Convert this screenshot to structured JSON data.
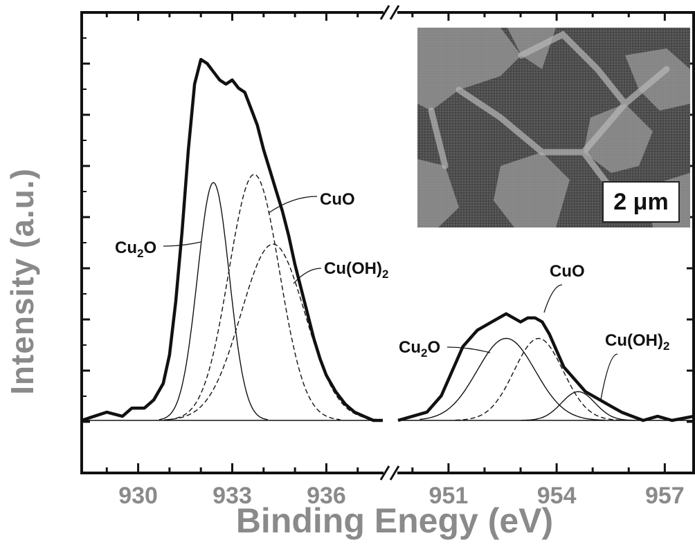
{
  "chart_data": {
    "type": "line",
    "title": "",
    "xlabel": "Binding Enegy (eV)",
    "ylabel": "Intensity (a.u.)",
    "x_tick_labels": [
      "930",
      "933",
      "936",
      "951",
      "954",
      "957"
    ],
    "x_ranges": [
      [
        928.2,
        937.8
      ],
      [
        949.6,
        957.8
      ]
    ],
    "axis_break": true,
    "ylim": [
      -0.12,
      1.0
    ],
    "grid": false,
    "legend": "none",
    "series": [
      {
        "name": "",
        "style": "thick",
        "segment": 0,
        "x": [
          928.2,
          929.0,
          929.5,
          929.8,
          930.2,
          930.5,
          930.8,
          931.0,
          931.2,
          931.4,
          931.6,
          931.8,
          932.0,
          932.2,
          932.4,
          932.6,
          932.8,
          933.0,
          933.2,
          933.4,
          933.6,
          933.8,
          934.0,
          934.2,
          934.4,
          934.6,
          934.8,
          935.0,
          935.2,
          935.4,
          935.6,
          935.8,
          936.0,
          936.3,
          936.6,
          936.9,
          937.2,
          937.5,
          937.8
        ],
        "y": [
          0.0,
          0.02,
          0.01,
          0.03,
          0.03,
          0.05,
          0.09,
          0.16,
          0.29,
          0.46,
          0.66,
          0.82,
          0.88,
          0.87,
          0.85,
          0.83,
          0.82,
          0.83,
          0.81,
          0.8,
          0.76,
          0.72,
          0.66,
          0.61,
          0.56,
          0.51,
          0.45,
          0.38,
          0.32,
          0.26,
          0.2,
          0.15,
          0.11,
          0.07,
          0.04,
          0.02,
          0.01,
          0.0,
          0.0
        ]
      },
      {
        "name": "Cu2O",
        "style": "solid",
        "segment": 0,
        "center": 932.4,
        "height": 0.58,
        "fwhm": 1.2
      },
      {
        "name": "CuO",
        "style": "dashed",
        "segment": 0,
        "center": 933.7,
        "height": 0.6,
        "fwhm": 1.9
      },
      {
        "name": "Cu(OH)2",
        "style": "dashed",
        "segment": 0,
        "center": 934.3,
        "height": 0.43,
        "fwhm": 2.4
      },
      {
        "name": "",
        "style": "thick",
        "segment": 1,
        "x": [
          949.6,
          950.0,
          950.4,
          950.8,
          951.0,
          951.2,
          951.4,
          951.6,
          951.8,
          952.0,
          952.2,
          952.4,
          952.6,
          952.8,
          953.0,
          953.2,
          953.4,
          953.6,
          953.8,
          954.0,
          954.2,
          954.4,
          954.6,
          954.8,
          955.0,
          955.2,
          955.4,
          955.6,
          955.8,
          956.1,
          956.4,
          956.8,
          957.2,
          957.8
        ],
        "y": [
          0.0,
          0.01,
          0.02,
          0.06,
          0.1,
          0.14,
          0.18,
          0.2,
          0.22,
          0.23,
          0.24,
          0.25,
          0.26,
          0.25,
          0.24,
          0.25,
          0.25,
          0.24,
          0.21,
          0.17,
          0.13,
          0.11,
          0.09,
          0.07,
          0.06,
          0.05,
          0.04,
          0.03,
          0.02,
          0.01,
          0.0,
          0.01,
          0.0,
          0.01
        ]
      },
      {
        "name": "Cu2O",
        "style": "solid",
        "segment": 1,
        "center": 952.6,
        "height": 0.2,
        "fwhm": 1.9
      },
      {
        "name": "CuO",
        "style": "dashed",
        "segment": 1,
        "center": 953.5,
        "height": 0.2,
        "fwhm": 1.6
      },
      {
        "name": "Cu(OH)2",
        "style": "solid",
        "segment": 1,
        "center": 954.6,
        "height": 0.07,
        "fwhm": 1.1
      }
    ],
    "annotations": [
      {
        "base": "Cu",
        "sub": "2",
        "tail": "O",
        "segment": 0
      },
      {
        "base": "CuO",
        "sub": "",
        "tail": "",
        "segment": 0
      },
      {
        "base": "Cu(OH)",
        "sub": "2",
        "tail": "",
        "segment": 0
      },
      {
        "base": "Cu",
        "sub": "2",
        "tail": "O",
        "segment": 1
      },
      {
        "base": "CuO",
        "sub": "",
        "tail": "",
        "segment": 1
      },
      {
        "base": "Cu(OH)",
        "sub": "2",
        "tail": "",
        "segment": 1
      }
    ]
  },
  "inset": {
    "scalebar_label": "2 μm"
  }
}
